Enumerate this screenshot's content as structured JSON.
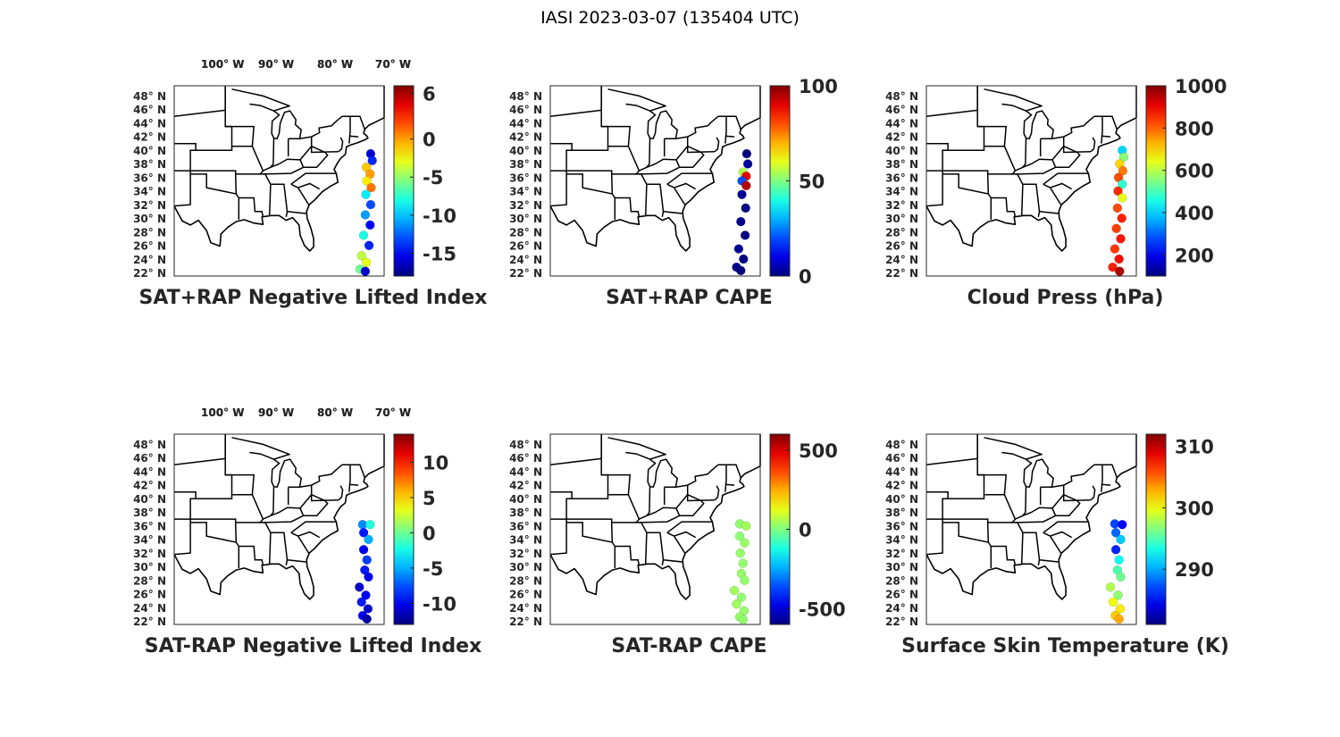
{
  "figure": {
    "title": "IASI 2023-03-07 (135404 UTC)"
  },
  "colormap": "jet",
  "colors": {
    "background": "#ffffff",
    "map_outline": "#000000",
    "text": "#262626"
  },
  "map": {
    "lon_ticks": [
      "100° W",
      "90° W",
      "80° W",
      "70° W"
    ],
    "lat_ticks": [
      "48° N",
      "46° N",
      "44° N",
      "42° N",
      "40° N",
      "38° N",
      "36° N",
      "34° N",
      "32° N",
      "30° N",
      "28° N",
      "26° N",
      "24° N",
      "22° N"
    ],
    "region": "Eastern United States"
  },
  "panels": [
    {
      "id": "sat-rap-neg-lifted-index",
      "title": "SAT+RAP Negative Lifted Index",
      "colorbar": {
        "ticks": [
          "6",
          "0",
          "-5",
          "-10",
          "-15"
        ],
        "range": [
          -18,
          7
        ]
      },
      "chart_data": {
        "type": "scatter",
        "x_dimension": "longitude (°W)",
        "y_dimension": "latitude (°N)",
        "value_dimension": "SAT+RAP Negative Lifted Index",
        "points": [
          {
            "lon": 69.5,
            "lat": 39.5,
            "v": -16
          },
          {
            "lon": 69.2,
            "lat": 38.5,
            "v": -14
          },
          {
            "lon": 70.3,
            "lat": 37.5,
            "v": -1
          },
          {
            "lon": 69.6,
            "lat": 36.5,
            "v": 0
          },
          {
            "lon": 70.2,
            "lat": 35.5,
            "v": -2
          },
          {
            "lon": 69.4,
            "lat": 34.5,
            "v": 1
          },
          {
            "lon": 70.4,
            "lat": 33.5,
            "v": -9
          },
          {
            "lon": 69.5,
            "lat": 32.0,
            "v": -13
          },
          {
            "lon": 70.5,
            "lat": 30.5,
            "v": -11
          },
          {
            "lon": 69.6,
            "lat": 29.0,
            "v": -15
          },
          {
            "lon": 70.8,
            "lat": 27.5,
            "v": -8
          },
          {
            "lon": 69.8,
            "lat": 26.0,
            "v": -14
          },
          {
            "lon": 71.2,
            "lat": 24.5,
            "v": -4
          },
          {
            "lon": 70.3,
            "lat": 23.5,
            "v": -3
          },
          {
            "lon": 71.5,
            "lat": 22.5,
            "v": -6
          },
          {
            "lon": 70.5,
            "lat": 22.2,
            "v": -16
          }
        ]
      }
    },
    {
      "id": "sat-rap-cape",
      "title": "SAT+RAP CAPE",
      "colorbar": {
        "ticks": [
          "100",
          "50",
          "0"
        ],
        "range": [
          0,
          100
        ]
      },
      "chart_data": {
        "type": "scatter",
        "x_dimension": "longitude (°W)",
        "y_dimension": "latitude (°N)",
        "value_dimension": "SAT+RAP CAPE",
        "points": [
          {
            "lon": 69.5,
            "lat": 39.5,
            "v": 0
          },
          {
            "lon": 69.3,
            "lat": 38.0,
            "v": 3
          },
          {
            "lon": 70.2,
            "lat": 36.8,
            "v": 55
          },
          {
            "lon": 69.6,
            "lat": 36.2,
            "v": 90
          },
          {
            "lon": 70.4,
            "lat": 35.5,
            "v": 20
          },
          {
            "lon": 69.6,
            "lat": 34.8,
            "v": 95
          },
          {
            "lon": 70.4,
            "lat": 33.5,
            "v": 2
          },
          {
            "lon": 69.7,
            "lat": 31.5,
            "v": 0
          },
          {
            "lon": 70.6,
            "lat": 29.5,
            "v": 1
          },
          {
            "lon": 69.8,
            "lat": 27.5,
            "v": 0
          },
          {
            "lon": 71.0,
            "lat": 25.5,
            "v": 2
          },
          {
            "lon": 70.1,
            "lat": 24.0,
            "v": 0
          },
          {
            "lon": 71.4,
            "lat": 22.8,
            "v": 1
          },
          {
            "lon": 70.6,
            "lat": 22.3,
            "v": 0
          }
        ]
      }
    },
    {
      "id": "cloud-press",
      "title": "Cloud Press (hPa)",
      "colorbar": {
        "ticks": [
          "1000",
          "800",
          "600",
          "400",
          "200"
        ],
        "range": [
          100,
          1000
        ]
      },
      "chart_data": {
        "type": "scatter",
        "x_dimension": "longitude (°W)",
        "y_dimension": "latitude (°N)",
        "value_dimension": "Cloud Press (hPa)",
        "points": [
          {
            "lon": 69.6,
            "lat": 40.0,
            "v": 400
          },
          {
            "lon": 69.3,
            "lat": 39.0,
            "v": 560
          },
          {
            "lon": 70.1,
            "lat": 38.0,
            "v": 700
          },
          {
            "lon": 69.5,
            "lat": 37.0,
            "v": 780
          },
          {
            "lon": 70.3,
            "lat": 36.0,
            "v": 820
          },
          {
            "lon": 69.6,
            "lat": 35.0,
            "v": 480
          },
          {
            "lon": 70.4,
            "lat": 34.0,
            "v": 850
          },
          {
            "lon": 69.6,
            "lat": 33.0,
            "v": 640
          },
          {
            "lon": 70.5,
            "lat": 31.5,
            "v": 820
          },
          {
            "lon": 69.7,
            "lat": 30.0,
            "v": 860
          },
          {
            "lon": 70.7,
            "lat": 28.5,
            "v": 830
          },
          {
            "lon": 69.9,
            "lat": 27.0,
            "v": 870
          },
          {
            "lon": 71.0,
            "lat": 25.5,
            "v": 840
          },
          {
            "lon": 70.2,
            "lat": 24.0,
            "v": 880
          },
          {
            "lon": 71.4,
            "lat": 22.8,
            "v": 860
          },
          {
            "lon": 70.1,
            "lat": 22.2,
            "v": 960
          }
        ]
      }
    },
    {
      "id": "sat-minus-rap-neg-lifted-index",
      "title": "SAT-RAP Negative Lifted Index",
      "colorbar": {
        "ticks": [
          "10",
          "5",
          "0",
          "-5",
          "-10"
        ],
        "range": [
          -13,
          14
        ]
      },
      "chart_data": {
        "type": "scatter",
        "x_dimension": "longitude (°W)",
        "y_dimension": "latitude (°N)",
        "value_dimension": "SAT-RAP Negative Lifted Index",
        "points": [
          {
            "lon": 71.0,
            "lat": 36.2,
            "v": -6
          },
          {
            "lon": 69.6,
            "lat": 36.2,
            "v": -2
          },
          {
            "lon": 70.8,
            "lat": 35.0,
            "v": -9
          },
          {
            "lon": 69.9,
            "lat": 34.0,
            "v": -5
          },
          {
            "lon": 70.8,
            "lat": 32.5,
            "v": -10
          },
          {
            "lon": 70.2,
            "lat": 31.0,
            "v": -8
          },
          {
            "lon": 70.6,
            "lat": 29.5,
            "v": -9
          },
          {
            "lon": 69.9,
            "lat": 28.5,
            "v": -10
          },
          {
            "lon": 71.6,
            "lat": 27.0,
            "v": -11
          },
          {
            "lon": 70.4,
            "lat": 25.8,
            "v": -10
          },
          {
            "lon": 71.2,
            "lat": 24.8,
            "v": -9
          },
          {
            "lon": 70.0,
            "lat": 23.8,
            "v": -11
          },
          {
            "lon": 71.0,
            "lat": 22.8,
            "v": -10
          },
          {
            "lon": 70.2,
            "lat": 22.3,
            "v": -12
          }
        ]
      }
    },
    {
      "id": "sat-minus-rap-cape",
      "title": "SAT-RAP CAPE",
      "colorbar": {
        "ticks": [
          "500",
          "0",
          "-500"
        ],
        "range": [
          -600,
          600
        ]
      },
      "chart_data": {
        "type": "scatter",
        "x_dimension": "longitude (°W)",
        "y_dimension": "latitude (°N)",
        "value_dimension": "SAT-RAP CAPE",
        "points": [
          {
            "lon": 70.8,
            "lat": 36.3,
            "v": 20
          },
          {
            "lon": 69.6,
            "lat": 36.0,
            "v": 40
          },
          {
            "lon": 70.8,
            "lat": 34.5,
            "v": 15
          },
          {
            "lon": 69.9,
            "lat": 33.5,
            "v": 30
          },
          {
            "lon": 70.7,
            "lat": 32.0,
            "v": 25
          },
          {
            "lon": 70.2,
            "lat": 30.5,
            "v": 20
          },
          {
            "lon": 70.5,
            "lat": 29.0,
            "v": 30
          },
          {
            "lon": 69.9,
            "lat": 28.0,
            "v": 25
          },
          {
            "lon": 71.8,
            "lat": 26.5,
            "v": 40
          },
          {
            "lon": 70.5,
            "lat": 25.5,
            "v": 20
          },
          {
            "lon": 71.4,
            "lat": 24.5,
            "v": 35
          },
          {
            "lon": 70.0,
            "lat": 23.5,
            "v": 25
          },
          {
            "lon": 70.8,
            "lat": 22.6,
            "v": 30
          },
          {
            "lon": 70.2,
            "lat": 22.2,
            "v": 20
          }
        ]
      }
    },
    {
      "id": "surface-skin-temperature",
      "title": "Surface Skin Temperature (K)",
      "colorbar": {
        "ticks": [
          "310",
          "300",
          "290"
        ],
        "range": [
          281,
          312
        ]
      },
      "chart_data": {
        "type": "scatter",
        "x_dimension": "longitude (°W)",
        "y_dimension": "latitude (°N)",
        "value_dimension": "Surface Skin Temperature (K)",
        "points": [
          {
            "lon": 71.0,
            "lat": 36.3,
            "v": 287
          },
          {
            "lon": 69.6,
            "lat": 36.2,
            "v": 285
          },
          {
            "lon": 70.8,
            "lat": 35.0,
            "v": 288
          },
          {
            "lon": 69.9,
            "lat": 34.0,
            "v": 291
          },
          {
            "lon": 70.8,
            "lat": 32.5,
            "v": 286
          },
          {
            "lon": 70.2,
            "lat": 31.0,
            "v": 293
          },
          {
            "lon": 70.5,
            "lat": 29.5,
            "v": 295
          },
          {
            "lon": 69.9,
            "lat": 28.5,
            "v": 296
          },
          {
            "lon": 71.8,
            "lat": 27.0,
            "v": 298
          },
          {
            "lon": 70.4,
            "lat": 25.8,
            "v": 297
          },
          {
            "lon": 71.3,
            "lat": 24.8,
            "v": 300
          },
          {
            "lon": 70.0,
            "lat": 23.8,
            "v": 301
          },
          {
            "lon": 70.9,
            "lat": 22.8,
            "v": 302
          },
          {
            "lon": 70.2,
            "lat": 22.3,
            "v": 303
          }
        ]
      }
    }
  ]
}
